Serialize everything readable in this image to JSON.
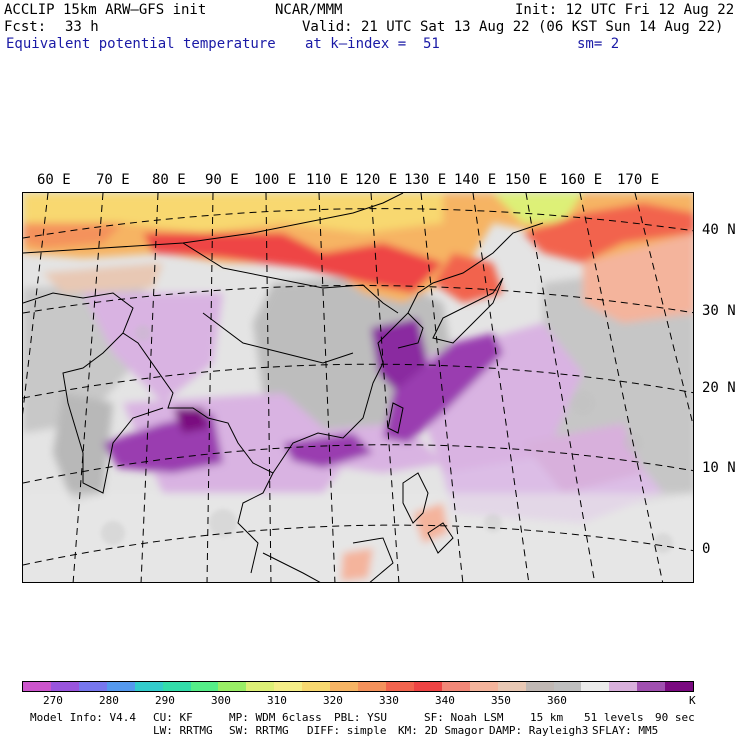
{
  "header": {
    "model_title": "ACCLIP 15km ARW–GFS init",
    "organization": "NCAR/MMM",
    "init_time": "Init: 12 UTC Fri 12 Aug 22",
    "forecast_label": "Fcst:",
    "forecast_hours": "33 h",
    "valid_time": "Valid: 21 UTC Sat 13 Aug 22 (06 KST Sun 14 Aug 22)",
    "field_name": "Equivalent potential temperature",
    "level": "at k–index =  51",
    "smoothing": "sm= 2"
  },
  "map": {
    "longitude_labels": [
      "60 E",
      "70 E",
      "80 E",
      "90 E",
      "100 E",
      "110 E",
      "120 E",
      "130 E",
      "140 E",
      "150 E",
      "160 E",
      "170 E"
    ],
    "latitude_labels": [
      "40 N",
      "30 N",
      "20 N",
      "10 N",
      "0"
    ]
  },
  "colorbar": {
    "colors": [
      "#cc55cc",
      "#9955dd",
      "#7777ee",
      "#5599ee",
      "#33cccc",
      "#33ddaa",
      "#55ee88",
      "#99ee66",
      "#ddf077",
      "#f5ee88",
      "#f8d870",
      "#f6b464",
      "#f4925c",
      "#f2644e",
      "#ee4444",
      "#f28878",
      "#f4b49c",
      "#e8c8b4",
      "#c0b8b4",
      "#bfbfbf",
      "#ebebeb",
      "#d8b0dc",
      "#a050b0",
      "#7a0a80"
    ],
    "tick_labels": [
      "270",
      "280",
      "290",
      "300",
      "310",
      "320",
      "330",
      "340",
      "350",
      "360"
    ],
    "unit": "K"
  },
  "footer": {
    "line1": [
      "Model Info: V4.4",
      "CU: KF",
      "MP: WDM 6class",
      "PBL: YSU",
      "SF: Noah LSM",
      "15 km",
      "51 levels",
      "90 sec"
    ],
    "line2": [
      "LW: RRTMG",
      "SW: RRTMG",
      "DIFF: simple",
      "KM: 2D Smagor",
      "DAMP: Rayleigh3",
      "SFLAY: MM5"
    ]
  }
}
